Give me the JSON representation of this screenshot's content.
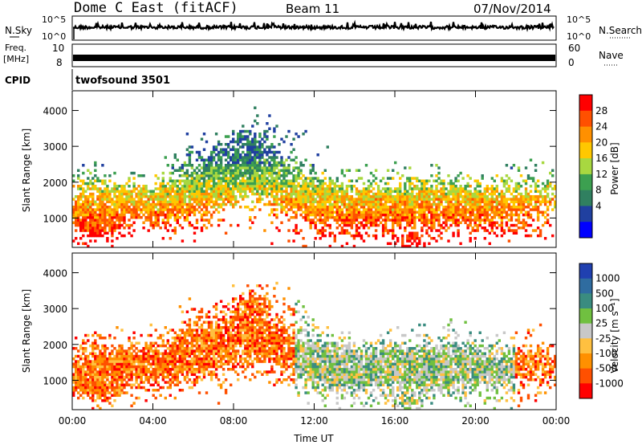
{
  "header": {
    "title": "Dome C East (fitACF)",
    "beam": "Beam 11",
    "date": "07/Nov/2014"
  },
  "summary": {
    "nsky_label": "N.Sky",
    "nsky_ticks": [
      "10^5",
      "10^0"
    ],
    "nsearch_label": "N.Search",
    "freq_label_1": "Freq.",
    "freq_label_2": "[MHz]",
    "freq_ticks": [
      "10",
      "8"
    ],
    "nave_label": "Nave",
    "nave_ticks": [
      "60",
      "0"
    ],
    "cpid_label": "CPID",
    "cpid_value": "twofsound 3501"
  },
  "chart_data": [
    {
      "type": "heatmap",
      "name": "power",
      "ylabel": "Slant Range [km]",
      "xlabel": "",
      "yticks": [
        1000,
        2000,
        3000,
        4000
      ],
      "ylim": [
        180,
        4550
      ],
      "colorbar_label": "Power [dB]",
      "colorbar_ticks": [
        "28",
        "24",
        "20",
        "16",
        "12",
        "8",
        "4"
      ],
      "colorbar_colors": [
        "#ff0000",
        "#ff5000",
        "#ff9000",
        "#ffc800",
        "#a8d840",
        "#3ca050",
        "#308060",
        "#2040a0",
        "#0000ff"
      ]
    },
    {
      "type": "heatmap",
      "name": "velocity",
      "ylabel": "Slant Range [km]",
      "xlabel": "Time UT",
      "yticks": [
        1000,
        2000,
        3000,
        4000
      ],
      "ylim": [
        180,
        4550
      ],
      "xticks": [
        "00:00",
        "04:00",
        "08:00",
        "12:00",
        "16:00",
        "20:00",
        "00:00"
      ],
      "colorbar_label": "Velocity [m s⁻¹]",
      "colorbar_ticks": [
        "1000",
        "500",
        "100",
        "25",
        "-25",
        "-100",
        "-500",
        "-1000"
      ],
      "colorbar_colors": [
        "#2040b0",
        "#2f6ca0",
        "#3a8c80",
        "#70c040",
        "#c8c8c8",
        "#ffc040",
        "#ff9000",
        "#ff5000",
        "#ff0000"
      ]
    }
  ],
  "palettes": {
    "power": [
      "#ff0000",
      "#ff5000",
      "#ff9000",
      "#ffc800",
      "#a8d840",
      "#3ca050",
      "#308060",
      "#2040a0"
    ],
    "velocity": [
      "#ff0000",
      "#ff5000",
      "#ff9000",
      "#ffc040",
      "#c8c8c8",
      "#70c040",
      "#3a8c80",
      "#2f6ca0"
    ]
  }
}
